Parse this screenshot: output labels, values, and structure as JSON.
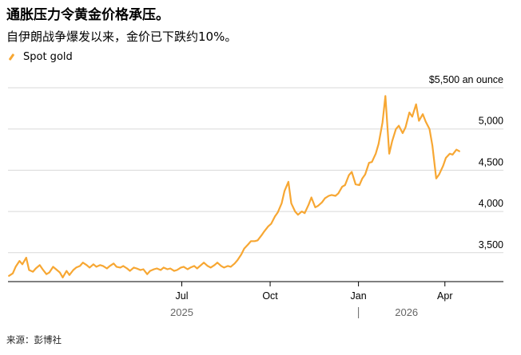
{
  "title": "通胀压力令黄金价格承压。",
  "subtitle": "自伊朗战争爆发以来，金价已下跌约10%。",
  "source": "来源：彭博社",
  "chart_data": {
    "type": "line",
    "series": [
      {
        "name": "Spot gold",
        "color": "#f7a733",
        "points": [
          [
            "2025-01-02",
            3220
          ],
          [
            "2025-01-06",
            3250
          ],
          [
            "2025-01-09",
            3330
          ],
          [
            "2025-01-13",
            3400
          ],
          [
            "2025-01-16",
            3360
          ],
          [
            "2025-01-20",
            3440
          ],
          [
            "2025-01-23",
            3290
          ],
          [
            "2025-01-27",
            3270
          ],
          [
            "2025-01-30",
            3310
          ],
          [
            "2025-02-03",
            3350
          ],
          [
            "2025-02-06",
            3300
          ],
          [
            "2025-02-10",
            3240
          ],
          [
            "2025-02-13",
            3260
          ],
          [
            "2025-02-17",
            3330
          ],
          [
            "2025-02-20",
            3300
          ],
          [
            "2025-02-24",
            3260
          ],
          [
            "2025-02-27",
            3200
          ],
          [
            "2025-03-03",
            3280
          ],
          [
            "2025-03-06",
            3230
          ],
          [
            "2025-03-10",
            3290
          ],
          [
            "2025-03-13",
            3320
          ],
          [
            "2025-03-17",
            3340
          ],
          [
            "2025-03-20",
            3380
          ],
          [
            "2025-03-24",
            3350
          ],
          [
            "2025-03-27",
            3320
          ],
          [
            "2025-03-31",
            3360
          ],
          [
            "2025-04-03",
            3330
          ],
          [
            "2025-04-07",
            3350
          ],
          [
            "2025-04-10",
            3340
          ],
          [
            "2025-04-14",
            3310
          ],
          [
            "2025-04-17",
            3340
          ],
          [
            "2025-04-21",
            3370
          ],
          [
            "2025-04-24",
            3330
          ],
          [
            "2025-04-28",
            3320
          ],
          [
            "2025-05-01",
            3340
          ],
          [
            "2025-05-05",
            3310
          ],
          [
            "2025-05-08",
            3280
          ],
          [
            "2025-05-12",
            3320
          ],
          [
            "2025-05-15",
            3310
          ],
          [
            "2025-05-19",
            3290
          ],
          [
            "2025-05-22",
            3300
          ],
          [
            "2025-05-26",
            3240
          ],
          [
            "2025-05-29",
            3280
          ],
          [
            "2025-06-02",
            3300
          ],
          [
            "2025-06-05",
            3310
          ],
          [
            "2025-06-09",
            3290
          ],
          [
            "2025-06-12",
            3320
          ],
          [
            "2025-06-16",
            3300
          ],
          [
            "2025-06-19",
            3310
          ],
          [
            "2025-06-23",
            3280
          ],
          [
            "2025-06-26",
            3290
          ],
          [
            "2025-06-30",
            3320
          ],
          [
            "2025-07-03",
            3330
          ],
          [
            "2025-07-07",
            3300
          ],
          [
            "2025-07-10",
            3320
          ],
          [
            "2025-07-14",
            3340
          ],
          [
            "2025-07-17",
            3310
          ],
          [
            "2025-07-21",
            3350
          ],
          [
            "2025-07-24",
            3380
          ],
          [
            "2025-07-28",
            3340
          ],
          [
            "2025-07-31",
            3320
          ],
          [
            "2025-08-04",
            3350
          ],
          [
            "2025-08-07",
            3380
          ],
          [
            "2025-08-11",
            3340
          ],
          [
            "2025-08-14",
            3320
          ],
          [
            "2025-08-18",
            3340
          ],
          [
            "2025-08-21",
            3330
          ],
          [
            "2025-08-25",
            3370
          ],
          [
            "2025-08-28",
            3410
          ],
          [
            "2025-09-01",
            3480
          ],
          [
            "2025-09-04",
            3550
          ],
          [
            "2025-09-08",
            3600
          ],
          [
            "2025-09-11",
            3640
          ],
          [
            "2025-09-15",
            3640
          ],
          [
            "2025-09-18",
            3650
          ],
          [
            "2025-09-22",
            3710
          ],
          [
            "2025-09-25",
            3760
          ],
          [
            "2025-09-29",
            3820
          ],
          [
            "2025-10-02",
            3850
          ],
          [
            "2025-10-06",
            3940
          ],
          [
            "2025-10-09",
            3990
          ],
          [
            "2025-10-13",
            4100
          ],
          [
            "2025-10-16",
            4250
          ],
          [
            "2025-10-20",
            4360
          ],
          [
            "2025-10-23",
            4100
          ],
          [
            "2025-10-27",
            4000
          ],
          [
            "2025-10-30",
            3960
          ],
          [
            "2025-11-03",
            4000
          ],
          [
            "2025-11-06",
            3980
          ],
          [
            "2025-11-10",
            4080
          ],
          [
            "2025-11-13",
            4170
          ],
          [
            "2025-11-17",
            4050
          ],
          [
            "2025-11-20",
            4070
          ],
          [
            "2025-11-24",
            4110
          ],
          [
            "2025-11-27",
            4160
          ],
          [
            "2025-12-01",
            4190
          ],
          [
            "2025-12-04",
            4200
          ],
          [
            "2025-12-08",
            4190
          ],
          [
            "2025-12-11",
            4220
          ],
          [
            "2025-12-15",
            4300
          ],
          [
            "2025-12-18",
            4320
          ],
          [
            "2025-12-22",
            4440
          ],
          [
            "2025-12-25",
            4480
          ],
          [
            "2025-12-29",
            4330
          ],
          [
            "2026-01-02",
            4320
          ],
          [
            "2026-01-05",
            4400
          ],
          [
            "2026-01-08",
            4450
          ],
          [
            "2026-01-12",
            4590
          ],
          [
            "2026-01-15",
            4600
          ],
          [
            "2026-01-19",
            4700
          ],
          [
            "2026-01-22",
            4820
          ],
          [
            "2026-01-26",
            5080
          ],
          [
            "2026-01-29",
            5400
          ],
          [
            "2026-02-02",
            4700
          ],
          [
            "2026-02-05",
            4850
          ],
          [
            "2026-02-09",
            5000
          ],
          [
            "2026-02-12",
            5040
          ],
          [
            "2026-02-16",
            4950
          ],
          [
            "2026-02-19",
            5020
          ],
          [
            "2026-02-23",
            5200
          ],
          [
            "2026-02-26",
            5150
          ],
          [
            "2026-03-02",
            5300
          ],
          [
            "2026-03-05",
            5100
          ],
          [
            "2026-03-09",
            5180
          ],
          [
            "2026-03-12",
            5090
          ],
          [
            "2026-03-16",
            5000
          ],
          [
            "2026-03-19",
            4800
          ],
          [
            "2026-03-23",
            4400
          ],
          [
            "2026-03-26",
            4450
          ],
          [
            "2026-03-30",
            4550
          ],
          [
            "2026-04-02",
            4650
          ],
          [
            "2026-04-06",
            4700
          ],
          [
            "2026-04-09",
            4690
          ],
          [
            "2026-04-13",
            4750
          ],
          [
            "2026-04-16",
            4730
          ]
        ]
      }
    ],
    "y_ticks": [
      3500,
      4000,
      4500,
      5000,
      5500
    ],
    "y_tick_labels": [
      "3,500",
      "4,000",
      "4,500",
      "5,000",
      "$5,500 an ounce"
    ],
    "ylim": [
      3150,
      5500
    ],
    "xlim": [
      "2025-01-01",
      "2026-04-22"
    ],
    "x_ticks": [
      {
        "date": "2025-07-01",
        "label": "Jul"
      },
      {
        "date": "2025-10-01",
        "label": "Oct"
      },
      {
        "date": "2026-01-01",
        "label": "Jan"
      },
      {
        "date": "2026-04-01",
        "label": "Apr"
      }
    ],
    "year_labels": [
      {
        "date": "2025-07-01",
        "label": "2025"
      },
      {
        "date": "2026-02-20",
        "label": "2026"
      }
    ],
    "year_divider": "2026-01-01",
    "grid": true,
    "legend_position": "top-left"
  }
}
